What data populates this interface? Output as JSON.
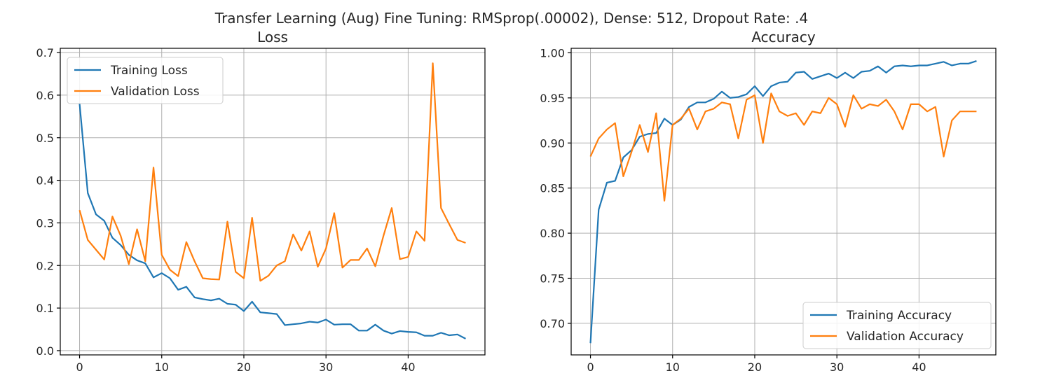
{
  "figure": {
    "suptitle": "Transfer Learning (Aug) Fine Tuning: RMSprop(.00002), Dense: 512, Dropout Rate: .4"
  },
  "colors": {
    "training": "#1f77b4",
    "validation": "#ff7f0e",
    "grid": "#b0b0b0",
    "axes": "#000000",
    "text": "#262626"
  },
  "chart_data": [
    {
      "type": "line",
      "title": "Loss",
      "xlabel": "",
      "ylabel": "",
      "x": [
        0,
        1,
        2,
        3,
        4,
        5,
        6,
        7,
        8,
        9,
        10,
        11,
        12,
        13,
        14,
        15,
        16,
        17,
        18,
        19,
        20,
        21,
        22,
        23,
        24,
        25,
        26,
        27,
        28,
        29,
        30,
        31,
        32,
        33,
        34,
        35,
        36,
        37,
        38,
        39,
        40,
        41,
        42,
        43,
        44,
        45,
        46,
        47
      ],
      "xlim": [
        -2.35,
        49.35
      ],
      "ylim": [
        -0.01,
        0.71
      ],
      "xticks": [
        0,
        10,
        20,
        30,
        40
      ],
      "xtick_labels": [
        "0",
        "10",
        "20",
        "30",
        "40"
      ],
      "yticks": [
        0.0,
        0.1,
        0.2,
        0.3,
        0.4,
        0.5,
        0.6,
        0.7
      ],
      "ytick_labels": [
        "0.0",
        "0.1",
        "0.2",
        "0.3",
        "0.4",
        "0.5",
        "0.6",
        "0.7"
      ],
      "grid": true,
      "legend_position": "upper left",
      "series": [
        {
          "name": "Training Loss",
          "color": "#1f77b4",
          "values": [
            0.58,
            0.37,
            0.32,
            0.305,
            0.265,
            0.248,
            0.225,
            0.212,
            0.205,
            0.172,
            0.182,
            0.17,
            0.143,
            0.15,
            0.125,
            0.121,
            0.118,
            0.122,
            0.11,
            0.108,
            0.093,
            0.115,
            0.09,
            0.088,
            0.086,
            0.06,
            0.062,
            0.064,
            0.068,
            0.066,
            0.073,
            0.061,
            0.062,
            0.062,
            0.047,
            0.047,
            0.061,
            0.047,
            0.04,
            0.046,
            0.044,
            0.043,
            0.035,
            0.035,
            0.042,
            0.036,
            0.038,
            0.028
          ]
        },
        {
          "name": "Validation Loss",
          "color": "#ff7f0e",
          "values": [
            0.33,
            0.26,
            0.237,
            0.214,
            0.315,
            0.27,
            0.203,
            0.285,
            0.21,
            0.43,
            0.225,
            0.19,
            0.175,
            0.255,
            0.21,
            0.17,
            0.168,
            0.167,
            0.303,
            0.185,
            0.17,
            0.312,
            0.164,
            0.176,
            0.2,
            0.21,
            0.273,
            0.235,
            0.28,
            0.197,
            0.24,
            0.323,
            0.195,
            0.213,
            0.213,
            0.24,
            0.198,
            0.27,
            0.335,
            0.215,
            0.22,
            0.28,
            0.258,
            0.675,
            0.335,
            0.297,
            0.26,
            0.253
          ]
        }
      ]
    },
    {
      "type": "line",
      "title": "Accuracy",
      "xlabel": "",
      "ylabel": "",
      "x": [
        0,
        1,
        2,
        3,
        4,
        5,
        6,
        7,
        8,
        9,
        10,
        11,
        12,
        13,
        14,
        15,
        16,
        17,
        18,
        19,
        20,
        21,
        22,
        23,
        24,
        25,
        26,
        27,
        28,
        29,
        30,
        31,
        32,
        33,
        34,
        35,
        36,
        37,
        38,
        39,
        40,
        41,
        42,
        43,
        44,
        45,
        46,
        47
      ],
      "xlim": [
        -2.35,
        49.35
      ],
      "ylim": [
        0.665,
        1.005
      ],
      "xticks": [
        0,
        10,
        20,
        30,
        40
      ],
      "xtick_labels": [
        "0",
        "10",
        "20",
        "30",
        "40"
      ],
      "yticks": [
        0.7,
        0.75,
        0.8,
        0.85,
        0.9,
        0.95,
        1.0
      ],
      "ytick_labels": [
        "0.70",
        "0.75",
        "0.80",
        "0.85",
        "0.90",
        "0.95",
        "1.00"
      ],
      "grid": true,
      "legend_position": "lower right",
      "series": [
        {
          "name": "Training Accuracy",
          "color": "#1f77b4",
          "values": [
            0.678,
            0.826,
            0.856,
            0.858,
            0.884,
            0.892,
            0.907,
            0.91,
            0.911,
            0.927,
            0.92,
            0.926,
            0.94,
            0.945,
            0.945,
            0.949,
            0.957,
            0.95,
            0.951,
            0.954,
            0.963,
            0.952,
            0.963,
            0.967,
            0.968,
            0.978,
            0.979,
            0.971,
            0.974,
            0.977,
            0.972,
            0.978,
            0.972,
            0.979,
            0.98,
            0.985,
            0.978,
            0.985,
            0.986,
            0.985,
            0.986,
            0.986,
            0.988,
            0.99,
            0.986,
            0.988,
            0.988,
            0.991
          ]
        },
        {
          "name": "Validation Accuracy",
          "color": "#ff7f0e",
          "values": [
            0.885,
            0.905,
            0.915,
            0.922,
            0.863,
            0.89,
            0.92,
            0.89,
            0.933,
            0.836,
            0.92,
            0.927,
            0.938,
            0.915,
            0.935,
            0.938,
            0.945,
            0.943,
            0.905,
            0.948,
            0.953,
            0.9,
            0.955,
            0.935,
            0.93,
            0.933,
            0.92,
            0.935,
            0.933,
            0.95,
            0.943,
            0.918,
            0.953,
            0.938,
            0.943,
            0.941,
            0.948,
            0.935,
            0.915,
            0.943,
            0.943,
            0.935,
            0.94,
            0.885,
            0.925,
            0.935,
            0.935,
            0.935
          ]
        }
      ]
    }
  ]
}
